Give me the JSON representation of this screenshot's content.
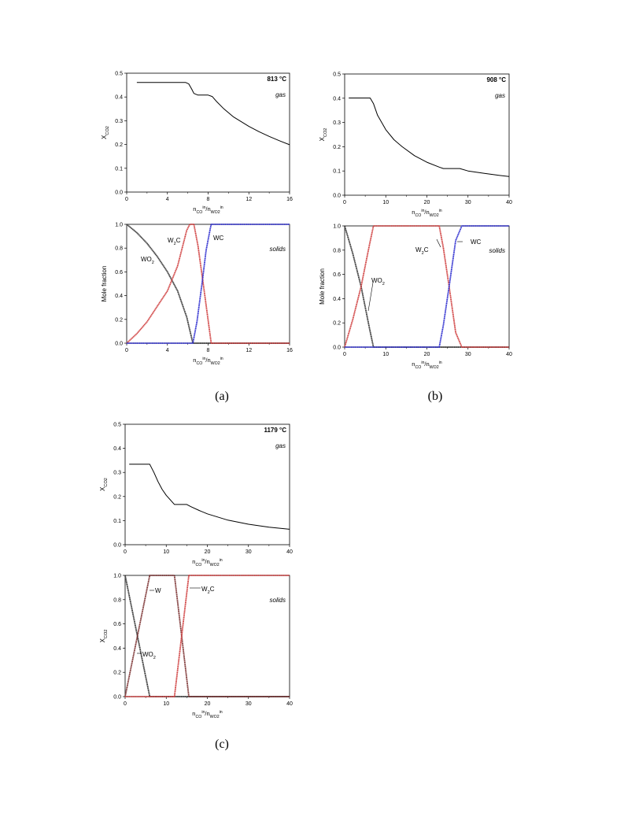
{
  "captions": [
    "(a)",
    "(b)",
    "(c)"
  ],
  "chart_data": [
    {
      "type": "line",
      "panel": "a-top",
      "ylabel": "X_CO2",
      "xlabel": "n_CO^in/n_WO2^in",
      "xlim": [
        0,
        16
      ],
      "ylim": [
        0,
        0.5
      ],
      "xticks": [
        "0",
        "4",
        "8",
        "12",
        "16"
      ],
      "yticks": [
        "0.0",
        "0.1",
        "0.2",
        "0.3",
        "0.4",
        "0.5"
      ],
      "temperature": "813 °C",
      "annotation": "gas",
      "series": [
        {
          "color": "#000000",
          "x": [
            1,
            5.8,
            6.1,
            6.4,
            6.6,
            7.0,
            8.0,
            8.4,
            8.8,
            9.5,
            10.5,
            12,
            13,
            14,
            15,
            16
          ],
          "y": [
            0.461,
            0.461,
            0.455,
            0.432,
            0.415,
            0.408,
            0.408,
            0.402,
            0.382,
            0.352,
            0.316,
            0.276,
            0.254,
            0.234,
            0.216,
            0.199
          ]
        }
      ]
    },
    {
      "type": "line",
      "panel": "a-bottom",
      "ylabel": "Mole fraction",
      "xlabel": "n_CO^in/n_WO2^in",
      "xlim": [
        0,
        16
      ],
      "ylim": [
        0,
        1
      ],
      "xticks": [
        "0",
        "4",
        "8",
        "12",
        "16"
      ],
      "yticks": [
        "0.0",
        "0.2",
        "0.4",
        "0.6",
        "0.8",
        "1.0"
      ],
      "annotation": "solids",
      "series": [
        {
          "name": "WO2",
          "color": "#333333",
          "x": [
            0,
            1,
            2,
            3,
            4,
            5,
            5.9,
            6.5,
            16
          ],
          "y": [
            1,
            0.93,
            0.84,
            0.73,
            0.6,
            0.44,
            0.22,
            0,
            0
          ]
        },
        {
          "name": "W2C",
          "color": "#d04040",
          "x": [
            0,
            1,
            2,
            3,
            4,
            5,
            5.9,
            6.2,
            6.6,
            7.0,
            7.6,
            8.3,
            16
          ],
          "y": [
            0,
            0.08,
            0.18,
            0.31,
            0.44,
            0.65,
            0.95,
            1,
            1,
            0.82,
            0.45,
            0,
            0
          ]
        },
        {
          "name": "WC",
          "color": "#3030d0",
          "x": [
            0,
            6.5,
            6.9,
            7.4,
            7.8,
            8.2,
            8.3,
            16
          ],
          "y": [
            0,
            0,
            0.18,
            0.5,
            0.78,
            0.96,
            1,
            1
          ]
        }
      ],
      "labels": [
        "WO2",
        "W2C",
        "WC"
      ]
    },
    {
      "type": "line",
      "panel": "b-top",
      "ylabel": "X_CO2",
      "xlabel": "n_CO^in/n_WO2^in",
      "xlim": [
        0,
        40
      ],
      "ylim": [
        0,
        0.5
      ],
      "xticks": [
        "0",
        "10",
        "20",
        "30",
        "40"
      ],
      "yticks": [
        "0.0",
        "0.1",
        "0.2",
        "0.3",
        "0.4",
        "0.5"
      ],
      "temperature": "908 °C",
      "annotation": "gas",
      "series": [
        {
          "color": "#000000",
          "x": [
            1,
            6.2,
            7,
            8,
            10,
            12,
            14,
            17,
            20,
            23,
            24,
            28,
            30,
            34,
            37,
            40
          ],
          "y": [
            0.401,
            0.401,
            0.378,
            0.33,
            0.27,
            0.229,
            0.2,
            0.163,
            0.136,
            0.116,
            0.11,
            0.11,
            0.1,
            0.09,
            0.083,
            0.077
          ]
        }
      ]
    },
    {
      "type": "line",
      "panel": "b-bottom",
      "ylabel": "Mole fraction",
      "xlabel": "n_CO^in/n_WO2^in",
      "xlim": [
        0,
        40
      ],
      "ylim": [
        0,
        1
      ],
      "xticks": [
        "0",
        "10",
        "20",
        "30",
        "40"
      ],
      "yticks": [
        "0.0",
        "0.2",
        "0.4",
        "0.6",
        "0.8",
        "1.0"
      ],
      "annotation": "solids",
      "series": [
        {
          "name": "WO2",
          "color": "#333333",
          "x": [
            0,
            2,
            4,
            6,
            7,
            40
          ],
          "y": [
            1,
            0.77,
            0.5,
            0.16,
            0,
            0
          ]
        },
        {
          "name": "W2C",
          "color": "#d04040",
          "x": [
            0,
            2,
            4,
            6,
            7,
            23,
            24,
            25.5,
            27,
            28.5,
            40
          ],
          "y": [
            0,
            0.23,
            0.5,
            0.84,
            1,
            1,
            0.82,
            0.48,
            0.12,
            0,
            0
          ]
        },
        {
          "name": "WC",
          "color": "#3030d0",
          "x": [
            0,
            23,
            24,
            25.5,
            27,
            28.5,
            40
          ],
          "y": [
            0,
            0,
            0.18,
            0.52,
            0.88,
            1,
            1
          ]
        }
      ],
      "labels": [
        "WO2",
        "W2C",
        "WC"
      ]
    },
    {
      "type": "line",
      "panel": "c-top",
      "ylabel": "X_CO2",
      "xlabel": "n_CO^in/n_WO2^in",
      "xlim": [
        0,
        40
      ],
      "ylim": [
        0,
        0.5
      ],
      "xticks": [
        "0",
        "10",
        "20",
        "30",
        "40"
      ],
      "yticks": [
        "0.0",
        "0.1",
        "0.2",
        "0.3",
        "0.4",
        "0.5"
      ],
      "temperature": "1179 °C",
      "annotation": "gas",
      "series": [
        {
          "color": "#000000",
          "x": [
            1,
            6,
            7,
            8,
            9,
            10,
            12,
            15,
            16,
            18,
            20,
            25,
            30,
            35,
            40
          ],
          "y": [
            0.334,
            0.334,
            0.3,
            0.262,
            0.23,
            0.205,
            0.167,
            0.167,
            0.158,
            0.142,
            0.128,
            0.102,
            0.085,
            0.073,
            0.064
          ]
        }
      ]
    },
    {
      "type": "line",
      "panel": "c-bottom",
      "ylabel": "X_CO2",
      "xlabel": "n_CO^in/n_WO2^in",
      "xlim": [
        0,
        40
      ],
      "ylim": [
        0,
        1
      ],
      "xticks": [
        "0",
        "10",
        "20",
        "30",
        "40"
      ],
      "yticks": [
        "0.0",
        "0.2",
        "0.4",
        "0.6",
        "0.8",
        "1.0"
      ],
      "annotation": "solids",
      "series": [
        {
          "name": "WO2",
          "color": "#333333",
          "x": [
            0,
            6,
            40
          ],
          "y": [
            1,
            0,
            0
          ]
        },
        {
          "name": "W",
          "color": "#7a3030",
          "x": [
            0,
            6,
            12,
            15.5,
            40
          ],
          "y": [
            0,
            1,
            1,
            0,
            0
          ]
        },
        {
          "name": "W2C",
          "color": "#d04040",
          "x": [
            0,
            12,
            15.5,
            40
          ],
          "y": [
            0,
            0,
            1,
            1
          ]
        }
      ],
      "labels": [
        "W",
        "WO2",
        "W2C"
      ]
    }
  ]
}
